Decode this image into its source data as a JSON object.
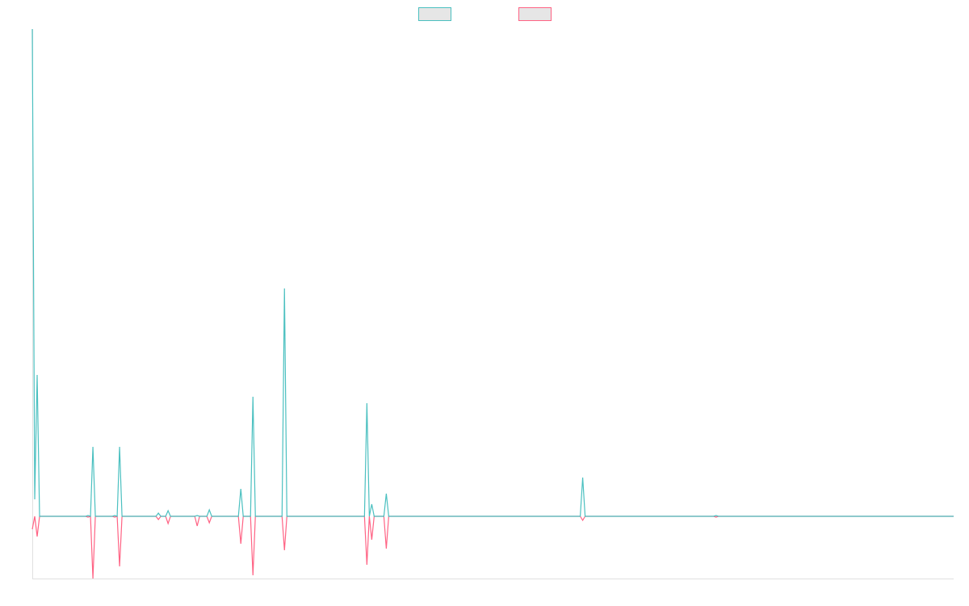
{
  "chart_data": {
    "type": "line",
    "x": [
      0,
      1,
      2,
      3,
      22,
      23,
      24,
      25,
      26,
      33,
      34,
      35,
      36,
      37,
      51,
      52,
      53,
      55,
      56,
      57,
      67,
      68,
      69,
      72,
      73,
      74,
      85,
      86,
      87,
      90,
      91,
      92,
      103,
      104,
      105,
      137,
      138,
      139,
      140,
      141,
      145,
      146,
      147,
      226,
      227,
      228,
      281,
      282,
      283,
      380
    ],
    "series": [
      {
        "color": "#4bc0c0",
        "values": [
          603,
          21,
          175,
          0,
          0,
          1,
          0,
          86,
          0,
          0,
          1,
          0,
          86,
          0,
          0,
          4,
          0,
          0,
          7,
          0,
          0,
          1,
          0,
          0,
          8,
          0,
          0,
          34,
          0,
          0,
          148,
          0,
          0,
          282,
          0,
          0,
          140,
          0,
          15,
          0,
          0,
          28,
          0,
          0,
          48,
          0,
          0,
          1,
          0,
          0
        ]
      },
      {
        "color": "#ff6384",
        "values": [
          -16,
          0,
          -25,
          0,
          0,
          -1,
          0,
          -77,
          0,
          0,
          -1,
          0,
          -62,
          0,
          0,
          -4,
          0,
          0,
          -9,
          0,
          0,
          -12,
          0,
          0,
          -8,
          0,
          0,
          -34,
          0,
          0,
          -73,
          0,
          0,
          -42,
          0,
          0,
          -60,
          0,
          -29,
          0,
          0,
          -40,
          0,
          0,
          -5,
          0,
          0,
          -1,
          0,
          0
        ]
      }
    ],
    "xlim": [
      0,
      380
    ],
    "ylim": [
      -77,
      603
    ],
    "legend": "top"
  }
}
